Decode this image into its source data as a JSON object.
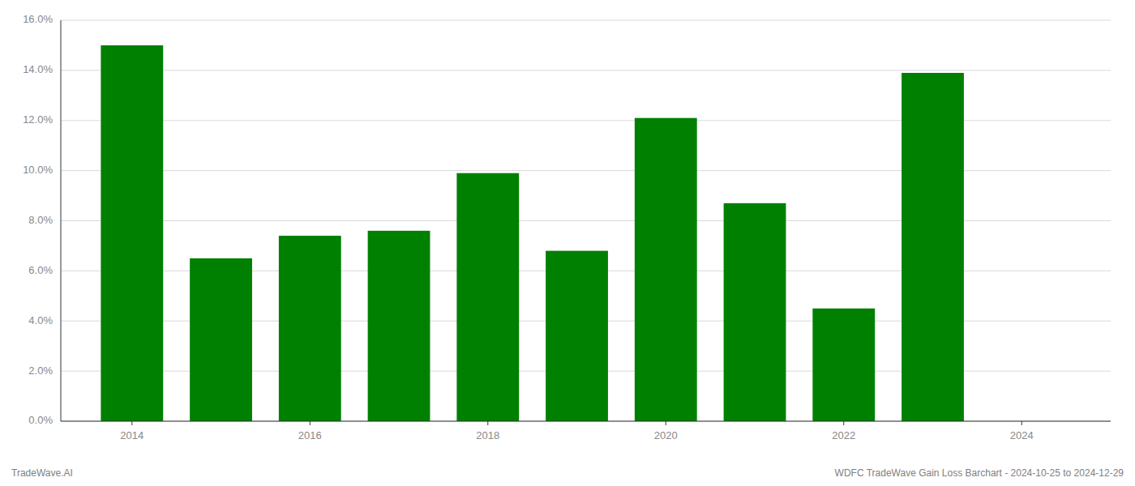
{
  "chart_data": {
    "type": "bar",
    "x": [
      2014,
      2015,
      2016,
      2017,
      2018,
      2019,
      2020,
      2021,
      2022,
      2023
    ],
    "values": [
      0.15,
      0.065,
      0.074,
      0.076,
      0.099,
      0.068,
      0.121,
      0.087,
      0.045,
      0.139
    ],
    "color": "#008000",
    "xlim": [
      2013.2,
      2025.0
    ],
    "xticks": [
      2014,
      2016,
      2018,
      2020,
      2022,
      2024
    ],
    "ylim": [
      0,
      0.16
    ],
    "yticks": [
      {
        "value": 0,
        "label": "0.0%"
      },
      {
        "value": 0.02,
        "label": "2.0%"
      },
      {
        "value": 0.04,
        "label": "4.0%"
      },
      {
        "value": 0.06,
        "label": "6.0%"
      },
      {
        "value": 0.08,
        "label": "8.0%"
      },
      {
        "value": 0.1,
        "label": "10.0%"
      },
      {
        "value": 0.12,
        "label": "12.0%"
      },
      {
        "value": 0.14,
        "label": "14.0%"
      },
      {
        "value": 0.16,
        "label": "16.0%"
      }
    ],
    "grid": true,
    "annotations": [
      "TradeWave.AI",
      "WDFC TradeWave Gain Loss Barchart - 2024-10-25 to 2024-12-29"
    ]
  }
}
